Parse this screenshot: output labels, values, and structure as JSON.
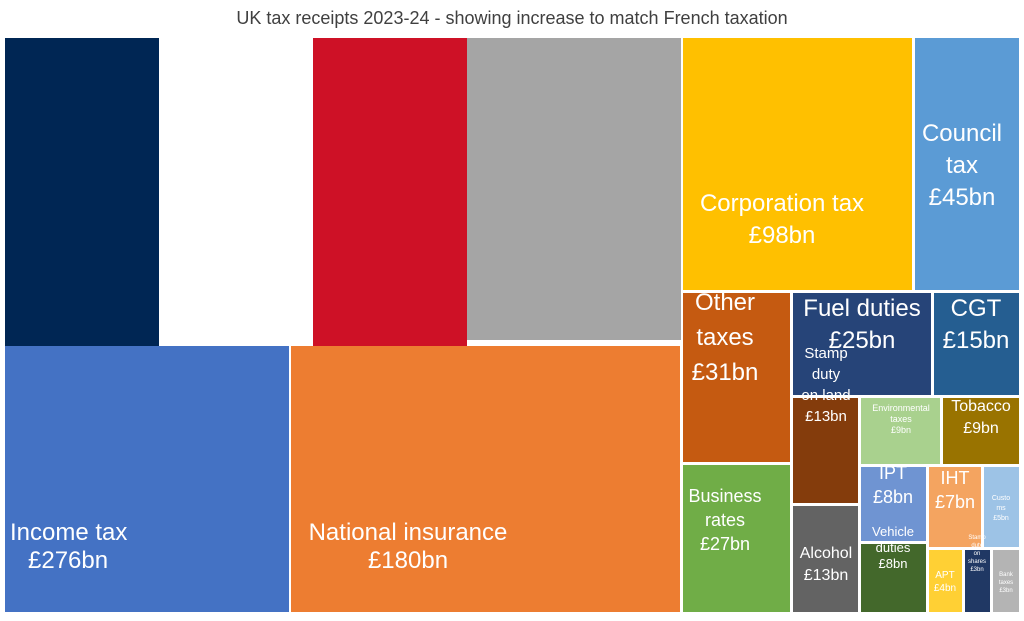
{
  "chart_data": {
    "type": "treemap",
    "title": "UK tax receipts 2023-24 - showing increase to match French taxation",
    "unit": "£bn",
    "colors": {
      "france_blue": "#002654",
      "france_white": "#FFFFFF",
      "france_red": "#CE1126",
      "increase_grey": "#A5A5A5"
    },
    "overlay": {
      "name": "French taxation increase",
      "depiction": "French tricolour flag followed by grey block above Income tax and National insurance"
    },
    "items": [
      {
        "id": "income-tax",
        "lines": [
          "Income tax",
          "£276bn"
        ],
        "value": 276,
        "color": "#4472C4",
        "align": "left"
      },
      {
        "id": "national-insurance",
        "lines": [
          "National insurance",
          "£180bn"
        ],
        "value": 180,
        "color": "#ED7D31",
        "align": "center"
      },
      {
        "id": "corporation-tax",
        "lines": [
          "Corporation tax",
          "£98bn"
        ],
        "value": 98,
        "color": "#FFC000",
        "align": "center"
      },
      {
        "id": "council-tax",
        "lines": [
          "Council",
          "tax",
          "£45bn"
        ],
        "value": 45,
        "color": "#5B9BD5",
        "align": "center"
      },
      {
        "id": "other-taxes",
        "lines": [
          "Other",
          "taxes",
          "£31bn"
        ],
        "value": 31,
        "color": "#C55A11",
        "align": "center"
      },
      {
        "id": "business-rates",
        "lines": [
          "Business",
          "rates",
          "£27bn"
        ],
        "value": 27,
        "color": "#70AD47",
        "align": "center"
      },
      {
        "id": "fuel-duties",
        "lines": [
          "Fuel duties",
          "£25bn"
        ],
        "value": 25,
        "color": "#264478",
        "align": "center"
      },
      {
        "id": "cgt",
        "lines": [
          "CGT",
          "£15bn"
        ],
        "value": 15,
        "color": "#255E91",
        "align": "center"
      },
      {
        "id": "stamp-duty-land",
        "lines": [
          "Stamp",
          "duty",
          "on land",
          "£13bn"
        ],
        "value": 13,
        "color": "#843C0C",
        "align": "center"
      },
      {
        "id": "alcohol",
        "lines": [
          "Alcohol",
          "£13bn"
        ],
        "value": 13,
        "color": "#636363",
        "align": "center"
      },
      {
        "id": "environmental-taxes",
        "lines": [
          "Environmental",
          "taxes",
          "£9bn"
        ],
        "value": 9,
        "color": "#A9D18E",
        "align": "center"
      },
      {
        "id": "tobacco",
        "lines": [
          "Tobacco",
          "£9bn"
        ],
        "value": 9,
        "color": "#997300",
        "align": "center"
      },
      {
        "id": "ipt",
        "lines": [
          "IPT",
          "£8bn"
        ],
        "value": 8,
        "color": "#6F94D2",
        "align": "center"
      },
      {
        "id": "vehicle-duties",
        "lines": [
          "Vehicle",
          "duties",
          "£8bn"
        ],
        "value": 8,
        "color": "#43682B",
        "align": "center"
      },
      {
        "id": "iht",
        "lines": [
          "IHT",
          "£7bn"
        ],
        "value": 7,
        "color": "#F4A460",
        "align": "center"
      },
      {
        "id": "customs",
        "lines": [
          "Custo",
          "ms",
          "£5bn"
        ],
        "value": 5,
        "color": "#9DC3E6",
        "align": "center"
      },
      {
        "id": "apt",
        "lines": [
          "APT",
          "£4bn"
        ],
        "value": 4,
        "color": "#FFD034",
        "align": "center"
      },
      {
        "id": "stamp-duty-shares",
        "lines": [
          "Stamp",
          "duty",
          "on",
          "shares",
          "£3bn"
        ],
        "value": 3,
        "color": "#203864",
        "align": "center"
      },
      {
        "id": "bank-taxes",
        "lines": [
          "Bank",
          "taxes",
          "£3bn"
        ],
        "value": 3,
        "color": "#B4B4B4",
        "align": "center"
      }
    ]
  }
}
